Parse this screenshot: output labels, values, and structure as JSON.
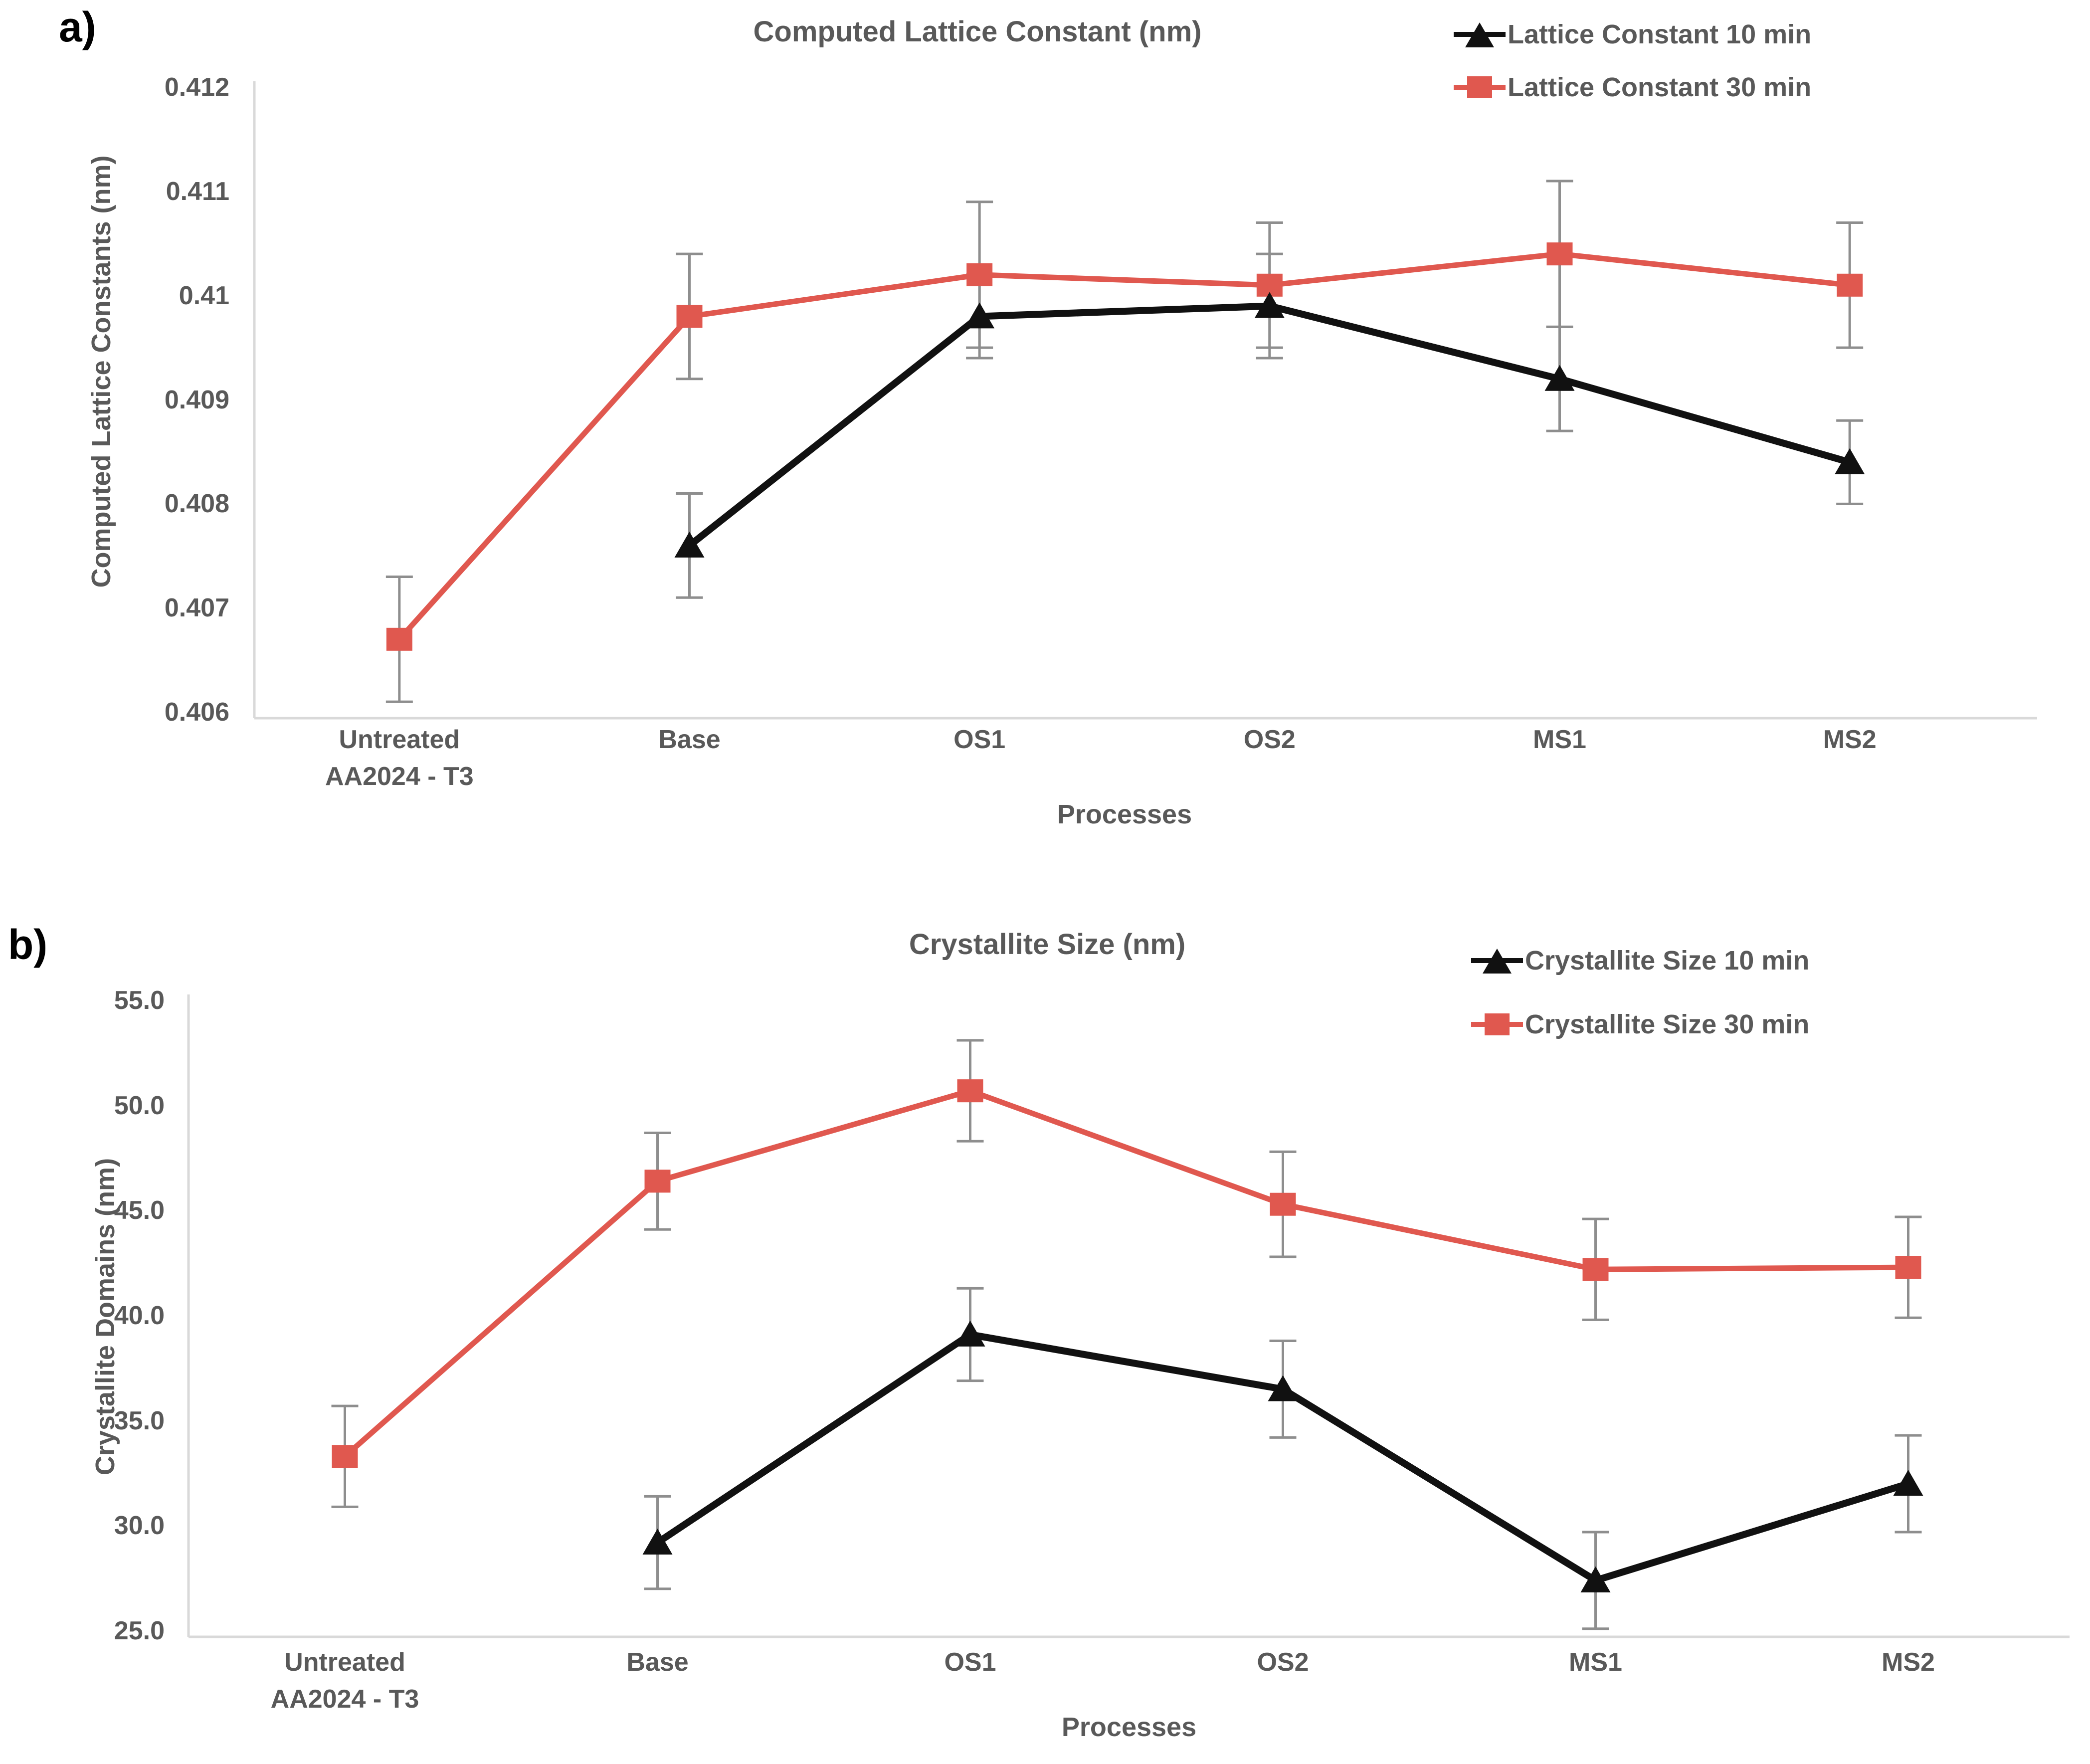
{
  "colors": {
    "background": "#ffffff",
    "text": "#595959",
    "panel_label": "#000000",
    "axis_line": "#d9d9d9",
    "error_bar": "#8e8e8e",
    "series_10min": "#111111",
    "series_30min": "#e0584f"
  },
  "chart_data": [
    {
      "type": "line",
      "panel_label": "a)",
      "title": "Computed Lattice Constant (nm)",
      "xlabel": "Processes",
      "ylabel": "Computed Lattice Constants (nm)",
      "categories": [
        [
          "Untreated",
          "AA2024 - T3"
        ],
        [
          "Base"
        ],
        [
          "OS1"
        ],
        [
          "OS2"
        ],
        [
          "MS1"
        ],
        [
          "MS2"
        ]
      ],
      "y_ticks": [
        "0.412",
        "0.411",
        "0.41",
        "0.409",
        "0.408",
        "0.407",
        "0.406"
      ],
      "ylim": [
        0.406,
        0.412
      ],
      "grid": false,
      "legend_position": "top-right",
      "series": [
        {
          "name": "Lattice Constant 10 min",
          "marker": "triangle",
          "color": "#111111",
          "values": [
            null,
            0.4076,
            0.4098,
            0.4099,
            0.4092,
            0.4084
          ],
          "errors": [
            null,
            0.0005,
            0.0004,
            0.0005,
            0.0005,
            0.0004
          ]
        },
        {
          "name": "Lattice Constant 30 min",
          "marker": "square",
          "color": "#e0584f",
          "values": [
            0.4067,
            0.4098,
            0.4102,
            0.4101,
            0.4104,
            0.4101
          ],
          "errors": [
            0.0006,
            0.0006,
            0.0007,
            0.0006,
            0.0007,
            0.0006
          ]
        }
      ]
    },
    {
      "type": "line",
      "panel_label": "b)",
      "title": "Crystallite Size (nm)",
      "xlabel": "Processes",
      "ylabel": "Crystallite Domains (nm)",
      "categories": [
        [
          "Untreated",
          "AA2024 - T3"
        ],
        [
          "Base"
        ],
        [
          "OS1"
        ],
        [
          "OS2"
        ],
        [
          "MS1"
        ],
        [
          "MS2"
        ]
      ],
      "y_ticks": [
        "55.0",
        "50.0",
        "45.0",
        "40.0",
        "35.0",
        "30.0",
        "25.0"
      ],
      "ylim": [
        25.0,
        55.0
      ],
      "grid": false,
      "legend_position": "top-right",
      "series": [
        {
          "name": "Crystallite Size 10 min",
          "marker": "triangle",
          "color": "#111111",
          "values": [
            null,
            29.2,
            39.1,
            36.5,
            27.4,
            32.0
          ],
          "errors": [
            null,
            2.2,
            2.2,
            2.3,
            2.3,
            2.3
          ]
        },
        {
          "name": "Crystallite Size 30 min",
          "marker": "square",
          "color": "#e0584f",
          "values": [
            33.3,
            46.4,
            50.7,
            45.3,
            42.2,
            42.3
          ],
          "errors": [
            2.4,
            2.3,
            2.4,
            2.5,
            2.4,
            2.4
          ]
        }
      ]
    }
  ]
}
